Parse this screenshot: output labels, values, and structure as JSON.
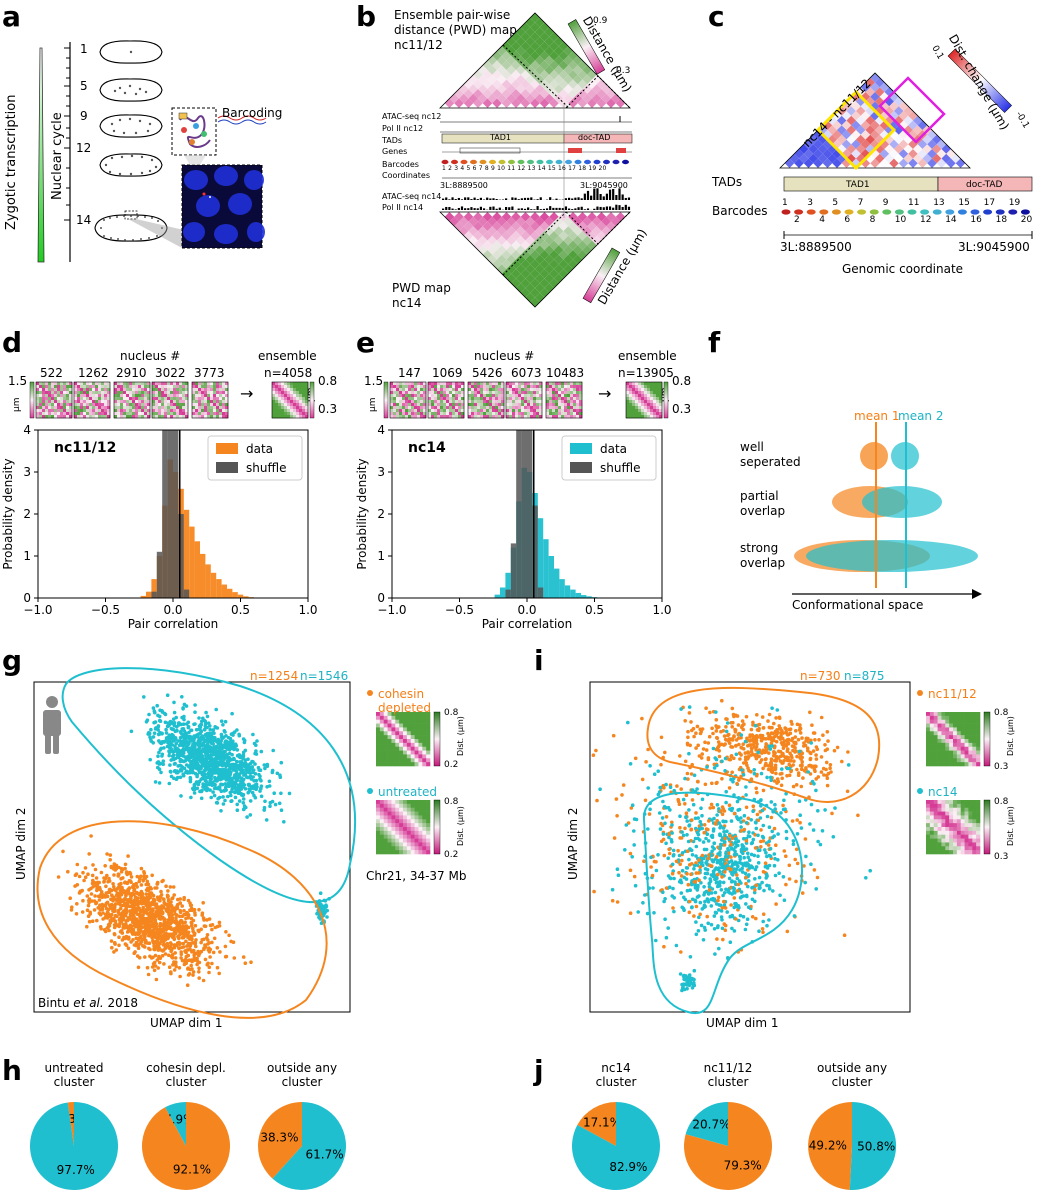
{
  "colors": {
    "orange": "#f5861f",
    "cyan": "#1fbfcf",
    "grey": "#555555",
    "tad1": "#e6e2c0",
    "doc": "#f4b6b6"
  },
  "panels": [
    "a",
    "b",
    "c",
    "d",
    "e",
    "f",
    "g",
    "h",
    "i",
    "j"
  ],
  "panel_a": {
    "gradient_label": "Zygotic transcription",
    "axis_label": "Nuclear cycle",
    "cycles": [
      "1",
      "5",
      "9",
      "12",
      "14"
    ],
    "barcoding": "Barcoding"
  },
  "panel_b": {
    "top_title": "Ensemble pair-wise distance (PWD) map nc11/12",
    "bottom_title": "PWD map nc14",
    "cbar_label": "Distance (µm)",
    "cbar_max": "0.9",
    "cbar_min": "0.3",
    "tracks": [
      "ATAC-seq nc12",
      "Pol II nc12",
      "TADs",
      "Genes",
      "Barcodes",
      "Coordinates",
      "ATAC-seq nc14",
      "Pol II nc14"
    ],
    "tad1": "TAD1",
    "doc_tad": "doc-TAD",
    "coord_start": "3L:8889500",
    "coord_end": "3L:9045900",
    "barcode_numbers": "1 2 3 4 5 6 7 8 9 10 11 12 13 14 15 16 17 18 19 20"
  },
  "panel_c": {
    "diag_label": "nc14 - nc11/12",
    "cbar_label": "Dist. change (µm)",
    "cbar_top": "0.1",
    "cbar_bottom": "-0.1",
    "tads_label": "TADs",
    "tad1": "TAD1",
    "doc_tad": "doc-TAD",
    "barcodes_label": "Barcodes",
    "top_numbers": [
      "1",
      "3",
      "5",
      "7",
      "9",
      "11",
      "13",
      "15",
      "17",
      "19"
    ],
    "bottom_numbers": [
      "2",
      "4",
      "6",
      "8",
      "10",
      "12",
      "14",
      "16",
      "18",
      "20"
    ],
    "coord_start": "3L:8889500",
    "coord_end": "3L:9045900",
    "xlabel": "Genomic coordinate"
  },
  "panel_d": {
    "nucleus_label": "nucleus #",
    "nuclei": [
      "522",
      "1262",
      "2910",
      "3022",
      "3773"
    ],
    "ensemble_label": "ensemble",
    "ensemble_n": "n=4058",
    "scale_left": "1.5",
    "scale_left_unit": "µm",
    "scale_right_top": "0.8",
    "scale_right_bottom": "0.3",
    "scale_right_unit": "µm",
    "arrow": "→",
    "group": "nc11/12"
  },
  "panel_e": {
    "nucleus_label": "nucleus #",
    "nuclei": [
      "147",
      "1069",
      "5426",
      "6073",
      "10483"
    ],
    "ensemble_label": "ensemble",
    "ensemble_n": "n=13905",
    "scale_left": "1.5",
    "scale_left_unit": "µm",
    "scale_right_top": "0.8",
    "scale_right_bottom": "0.3",
    "scale_right_unit": "µm",
    "arrow": "→",
    "group": "nc14"
  },
  "panel_f": {
    "mean1": "mean 1",
    "mean2": "mean 2",
    "rows": [
      "well seperated",
      "partial overlap",
      "strong overlap"
    ],
    "xlabel": "Conformational space"
  },
  "panel_g": {
    "n1": "n=1254",
    "n2": "n=1546",
    "legend1": "cohesin depleted",
    "legend2": "untreated",
    "cbar_top": "0.8",
    "cbar_bottom": "0.2",
    "cbar_label": "Dist. (µm)",
    "region": "Chr21, 34-37 Mb",
    "source_prefix": "Bintu ",
    "source_italic": "et al.",
    "source_suffix": " 2018",
    "xlabel": "UMAP dim 1",
    "ylabel": "UMAP dim 2"
  },
  "panel_i": {
    "n1": "n=730",
    "n2": "n=875",
    "legend1": "nc11/12",
    "legend2": "nc14",
    "cbar_top": "0.8",
    "cbar_bottom": "0.3",
    "cbar_label": "Dist. (µm)",
    "xlabel": "UMAP dim 1",
    "ylabel": "UMAP dim 2"
  },
  "chart_data": [
    {
      "type": "bar",
      "id": "d",
      "title": "nc11/12",
      "xlabel": "Pair correlation",
      "ylabel": "Probability density",
      "xlim": [
        -1.0,
        1.0
      ],
      "ylim": [
        0,
        4
      ],
      "xticks": [
        "−1.0",
        "−0.5",
        "0.0",
        "0.5",
        "1.0"
      ],
      "yticks": [
        "0",
        "1",
        "2",
        "3",
        "4"
      ],
      "legend": [
        "data",
        "shuffle"
      ],
      "bin_width": 0.04,
      "series": [
        {
          "name": "data",
          "color": "#f5861f",
          "x": [
            -0.22,
            -0.18,
            -0.14,
            -0.1,
            -0.06,
            -0.02,
            0.02,
            0.06,
            0.1,
            0.14,
            0.18,
            0.22,
            0.26,
            0.3,
            0.34,
            0.38,
            0.42,
            0.46,
            0.5,
            0.54,
            0.58
          ],
          "values": [
            0.05,
            0.15,
            0.45,
            1.0,
            2.2,
            3.3,
            3.0,
            2.6,
            2.1,
            1.7,
            1.35,
            1.05,
            0.8,
            0.6,
            0.45,
            0.32,
            0.22,
            0.14,
            0.08,
            0.04,
            0.02
          ]
        },
        {
          "name": "shuffle",
          "color": "#555555",
          "x": [
            -0.14,
            -0.1,
            -0.06,
            -0.02,
            0.02,
            0.06,
            0.1
          ],
          "values": [
            0.15,
            1.1,
            4.0,
            4.0,
            4.0,
            2.0,
            0.2
          ]
        }
      ],
      "vline": 0.05
    },
    {
      "type": "bar",
      "id": "e",
      "title": "nc14",
      "xlabel": "Pair correlation",
      "ylabel": "Probability density",
      "xlim": [
        -1.0,
        1.0
      ],
      "ylim": [
        0,
        4
      ],
      "xticks": [
        "−1.0",
        "−0.5",
        "0.0",
        "0.5",
        "1.0"
      ],
      "yticks": [
        "0",
        "1",
        "2",
        "3",
        "4"
      ],
      "legend": [
        "data",
        "shuffle"
      ],
      "bin_width": 0.04,
      "series": [
        {
          "name": "data",
          "color": "#1fbfcf",
          "x": [
            -0.22,
            -0.18,
            -0.14,
            -0.1,
            -0.06,
            -0.02,
            0.02,
            0.06,
            0.1,
            0.14,
            0.18,
            0.22,
            0.26,
            0.3,
            0.34,
            0.38,
            0.42,
            0.46,
            0.5,
            0.54,
            0.58
          ],
          "values": [
            0.08,
            0.25,
            0.6,
            1.2,
            2.3,
            3.1,
            3.0,
            2.5,
            1.9,
            1.4,
            1.0,
            0.7,
            0.45,
            0.3,
            0.2,
            0.12,
            0.07,
            0.04,
            0.02,
            0.01,
            0.01
          ]
        },
        {
          "name": "shuffle",
          "color": "#555555",
          "x": [
            -0.14,
            -0.1,
            -0.06,
            -0.02,
            0.02,
            0.06,
            0.1
          ],
          "values": [
            0.2,
            1.3,
            4.0,
            4.0,
            4.0,
            2.2,
            0.25
          ]
        }
      ],
      "vline": 0.05
    },
    {
      "type": "pie",
      "id": "h",
      "pies": [
        {
          "title": "untreated cluster",
          "slices": [
            {
              "label": "2.3%",
              "value": 2.3,
              "color": "#f5861f"
            },
            {
              "label": "97.7%",
              "value": 97.7,
              "color": "#1fbfcf"
            }
          ]
        },
        {
          "title": "cohesin depl. cluster",
          "slices": [
            {
              "label": "7.9%",
              "value": 7.9,
              "color": "#1fbfcf"
            },
            {
              "label": "92.1%",
              "value": 92.1,
              "color": "#f5861f"
            }
          ]
        },
        {
          "title": "outside any cluster",
          "slices": [
            {
              "label": "38.3%",
              "value": 38.3,
              "color": "#f5861f"
            },
            {
              "label": "61.7%",
              "value": 61.7,
              "color": "#1fbfcf"
            }
          ]
        }
      ]
    },
    {
      "type": "pie",
      "id": "j",
      "pies": [
        {
          "title": "nc14 cluster",
          "slices": [
            {
              "label": "17.1%",
              "value": 17.1,
              "color": "#f5861f"
            },
            {
              "label": "82.9%",
              "value": 82.9,
              "color": "#1fbfcf"
            }
          ]
        },
        {
          "title": "nc11/12 cluster",
          "slices": [
            {
              "label": "20.7%",
              "value": 20.7,
              "color": "#1fbfcf"
            },
            {
              "label": "79.3%",
              "value": 79.3,
              "color": "#f5861f"
            }
          ]
        },
        {
          "title": "outside any cluster",
          "slices": [
            {
              "label": "49.2%",
              "value": 49.2,
              "color": "#f5861f"
            },
            {
              "label": "50.8%",
              "value": 50.8,
              "color": "#1fbfcf"
            }
          ]
        }
      ]
    }
  ]
}
